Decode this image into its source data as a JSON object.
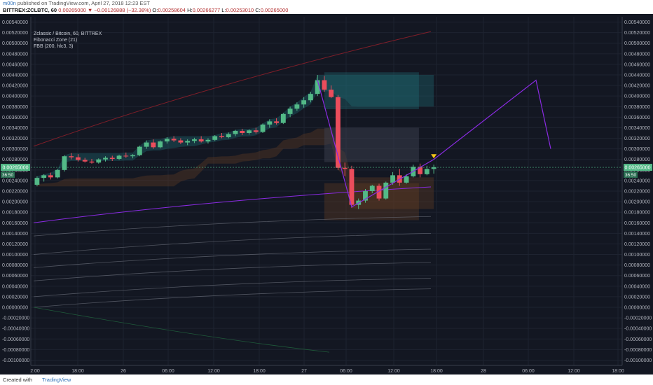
{
  "header": {
    "author": "m00n",
    "published": "published on TradingView.com, April 27, 2018 12:23 EST",
    "symbol": "BITTREX:ZCLBTC, 60",
    "last": "0.00265000",
    "change": "▼ −0.00126888 (−32.38%)",
    "o_label": "O:",
    "o": "0.00258604",
    "h_label": "H:",
    "h": "0.00266277",
    "l_label": "L:",
    "l": "0.00253010",
    "c_label": "C:",
    "c": "0.00265000"
  },
  "legend": {
    "title": "Zclassic / Bitcoin, 60, BITTREX",
    "ind1": "Fibonacci Zone (21)",
    "ind2": "FBB (200, hlc3, 3)"
  },
  "footer": {
    "created": "Created with",
    "brand": "TradingView"
  },
  "price_badge": {
    "value": "0.00265000",
    "time": "36:50"
  },
  "colors": {
    "background": "#131722",
    "up_candle": "#53b987",
    "down_candle": "#eb4d5c",
    "fib_zone_top": "#1f6f78",
    "fib_zone_bottom": "#6b3f23",
    "fbb_basis": "#8a2be2",
    "fbb_upper": "#8b1f2a",
    "projection": "#8a2be2",
    "arrow": "#f5c518"
  },
  "chart_data": {
    "type": "candlestick",
    "x_ticks": [
      "2:00",
      "18:00",
      "26",
      "06:00",
      "12:00",
      "18:00",
      "27",
      "06:00",
      "12:00",
      "18:00",
      "28",
      "06:00",
      "12:00",
      "18:00"
    ],
    "y_ticks": [
      "0.00540000",
      "0.00520000",
      "0.00500000",
      "0.00480000",
      "0.00460000",
      "0.00440000",
      "0.00420000",
      "0.00400000",
      "0.00380000",
      "0.00360000",
      "0.00340000",
      "0.00320000",
      "0.00300000",
      "0.00280000",
      "0.00260000",
      "0.00240000",
      "0.00220000",
      "0.00200000",
      "0.00180000",
      "0.00160000",
      "0.00140000",
      "0.00120000",
      "0.00100000",
      "0.00080000",
      "0.00060000",
      "0.00040000",
      "0.00020000",
      "0.00000000",
      "-0.00020000",
      "-0.00040000",
      "-0.00060000",
      "-0.00080000",
      "-0.00100000"
    ],
    "ylim": [
      -0.0011,
      0.0055
    ],
    "candles": [
      [
        0.00232,
        0.00248,
        0.00229,
        0.00245
      ],
      [
        0.00245,
        0.00252,
        0.00238,
        0.0025
      ],
      [
        0.0025,
        0.00255,
        0.00242,
        0.00246
      ],
      [
        0.00246,
        0.00262,
        0.00244,
        0.0026
      ],
      [
        0.0026,
        0.00288,
        0.00257,
        0.00286
      ],
      [
        0.00286,
        0.00292,
        0.0028,
        0.00284
      ],
      [
        0.00284,
        0.0029,
        0.00276,
        0.00279
      ],
      [
        0.00279,
        0.00283,
        0.00274,
        0.00276
      ],
      [
        0.00276,
        0.00281,
        0.00272,
        0.00274
      ],
      [
        0.00274,
        0.00282,
        0.00272,
        0.0028
      ],
      [
        0.0028,
        0.00286,
        0.00276,
        0.00283
      ],
      [
        0.00283,
        0.00287,
        0.00277,
        0.00281
      ],
      [
        0.00281,
        0.00289,
        0.00279,
        0.00287
      ],
      [
        0.00287,
        0.00293,
        0.00283,
        0.00286
      ],
      [
        0.00286,
        0.0029,
        0.00282,
        0.00288
      ],
      [
        0.00288,
        0.00306,
        0.00286,
        0.00304
      ],
      [
        0.00304,
        0.00316,
        0.003,
        0.00312
      ],
      [
        0.00312,
        0.00318,
        0.003,
        0.00303
      ],
      [
        0.00303,
        0.00316,
        0.00301,
        0.00314
      ],
      [
        0.00314,
        0.00322,
        0.0031,
        0.00319
      ],
      [
        0.00319,
        0.00324,
        0.00313,
        0.00316
      ],
      [
        0.00316,
        0.0032,
        0.00309,
        0.00312
      ],
      [
        0.00312,
        0.00318,
        0.00307,
        0.00315
      ],
      [
        0.00315,
        0.00321,
        0.00311,
        0.00318
      ],
      [
        0.00318,
        0.00324,
        0.00312,
        0.00314
      ],
      [
        0.00314,
        0.0032,
        0.0031,
        0.00317
      ],
      [
        0.00317,
        0.00326,
        0.00315,
        0.00324
      ],
      [
        0.00324,
        0.0033,
        0.0032,
        0.00322
      ],
      [
        0.00322,
        0.00331,
        0.0032,
        0.00328
      ],
      [
        0.00328,
        0.00336,
        0.00324,
        0.00334
      ],
      [
        0.00334,
        0.00338,
        0.00326,
        0.0033
      ],
      [
        0.0033,
        0.00337,
        0.00327,
        0.00335
      ],
      [
        0.00335,
        0.0034,
        0.00329,
        0.00332
      ],
      [
        0.00332,
        0.00348,
        0.0033,
        0.00346
      ],
      [
        0.00346,
        0.00356,
        0.0034,
        0.00352
      ],
      [
        0.00352,
        0.00358,
        0.00346,
        0.00349
      ],
      [
        0.00349,
        0.00368,
        0.00347,
        0.00366
      ],
      [
        0.00366,
        0.0038,
        0.0036,
        0.00376
      ],
      [
        0.00376,
        0.00388,
        0.00372,
        0.00384
      ],
      [
        0.00384,
        0.00398,
        0.00378,
        0.00392
      ],
      [
        0.00392,
        0.00408,
        0.00388,
        0.00404
      ],
      [
        0.00404,
        0.0044,
        0.004,
        0.0043
      ],
      [
        0.0043,
        0.00438,
        0.00408,
        0.00412
      ],
      [
        0.00412,
        0.0042,
        0.00396,
        0.00398
      ],
      [
        0.00398,
        0.00402,
        0.0026,
        0.00264
      ],
      [
        0.00264,
        0.00274,
        0.00248,
        0.00262
      ],
      [
        0.00262,
        0.00268,
        0.00188,
        0.00194
      ],
      [
        0.00194,
        0.00206,
        0.00186,
        0.00202
      ],
      [
        0.00202,
        0.00224,
        0.00198,
        0.0022
      ],
      [
        0.0022,
        0.00232,
        0.00216,
        0.0023
      ],
      [
        0.0023,
        0.00234,
        0.00202,
        0.00206
      ],
      [
        0.00206,
        0.00238,
        0.00204,
        0.00236
      ],
      [
        0.00236,
        0.00256,
        0.00232,
        0.0025
      ],
      [
        0.0025,
        0.00262,
        0.0023,
        0.00236
      ],
      [
        0.00236,
        0.00252,
        0.00234,
        0.00248
      ],
      [
        0.00248,
        0.0027,
        0.00246,
        0.00266
      ],
      [
        0.00266,
        0.00272,
        0.00246,
        0.00252
      ],
      [
        0.00252,
        0.00268,
        0.0025,
        0.00262
      ],
      [
        0.00262,
        0.0027,
        0.00253,
        0.00265
      ]
    ],
    "projection": [
      [
        0.0043,
        0
      ],
      [
        0.0019,
        0
      ],
      [
        0.0028,
        0
      ],
      [
        0.0043,
        0
      ],
      [
        0.003,
        0
      ]
    ]
  }
}
